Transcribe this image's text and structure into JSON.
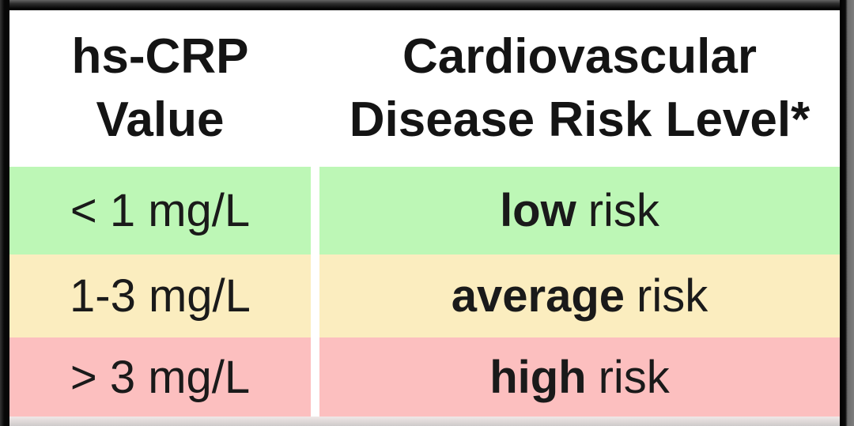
{
  "chart_data": {
    "type": "table",
    "columns": [
      "hs-CRP Value",
      "Cardiovascular Disease Risk Level*"
    ],
    "rows": [
      [
        "< 1 mg/L",
        "low risk"
      ],
      [
        "1-3 mg/L",
        "average risk"
      ],
      [
        "> 3 mg/L",
        "high risk"
      ]
    ],
    "row_colors": [
      "#bdf7b6",
      "#fbedbf",
      "#fcbfbf"
    ],
    "header_background": "#ffffff",
    "layout": "two columns separated by white vertical gap; dark photo frame around table"
  },
  "table": {
    "header": {
      "col1": {
        "line1": "hs-CRP",
        "line2": "Value"
      },
      "col2": {
        "line1": "Cardiovascular",
        "line2": "Disease Risk Level*"
      }
    },
    "rows": [
      {
        "value": "< 1 mg/L",
        "risk_word": "low",
        "risk_suffix": "risk",
        "row_color": "#bdf7b6"
      },
      {
        "value": "1-3 mg/L",
        "risk_word": "average",
        "risk_suffix": "risk",
        "row_color": "#fbedbf"
      },
      {
        "value": "> 3 mg/L",
        "risk_word": "high",
        "risk_suffix": "risk",
        "row_color": "#fcbfbf"
      }
    ],
    "colors": {
      "low_green": "#bdf7b6",
      "average_yellow": "#fbedbf",
      "high_pink": "#fcbfbf",
      "divider_white": "#ffffff",
      "text_black": "#141414",
      "frame_dark": "#0b0b0b"
    }
  }
}
